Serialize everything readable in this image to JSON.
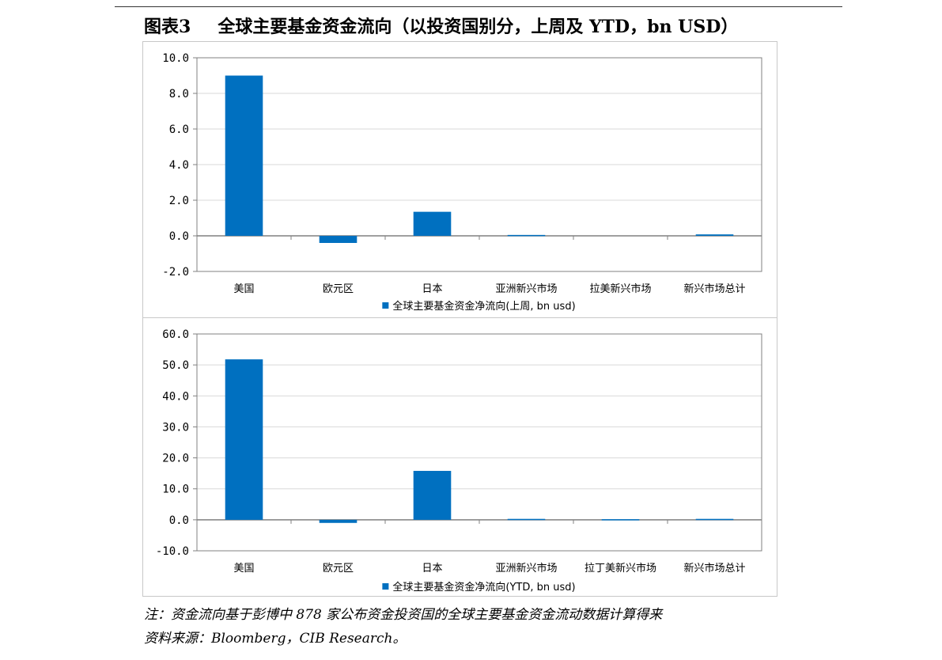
{
  "header": {
    "figure_number": "图表3",
    "figure_title": "全球主要基金资金流向（以投资国别分，上周及 YTD，bn USD）"
  },
  "colors": {
    "bar": "#0070C0",
    "grid": "#d9d9d9",
    "axis": "#808080"
  },
  "chart_data": [
    {
      "type": "bar",
      "categories": [
        "美国",
        "欧元区",
        "日本",
        "亚洲新兴市场",
        "拉美新兴市场",
        "新兴市场总计"
      ],
      "series": [
        {
          "name": "全球主要基金资金净流向(上周, bn usd)",
          "values": [
            9.0,
            -0.4,
            1.35,
            0.05,
            0.0,
            0.08
          ]
        }
      ],
      "ylim": [
        -2.0,
        10.0
      ],
      "yticks": [
        -2.0,
        0.0,
        2.0,
        4.0,
        6.0,
        8.0,
        10.0
      ],
      "ytick_labels": [
        "-2.0",
        "0.0",
        "2.0",
        "4.0",
        "6.0",
        "8.0",
        "10.0"
      ],
      "grid": true,
      "legend_position": "bottom"
    },
    {
      "type": "bar",
      "categories": [
        "美国",
        "欧元区",
        "日本",
        "亚洲新兴市场",
        "拉丁美新兴市场",
        "新兴市场总计"
      ],
      "series": [
        {
          "name": "全球主要基金资金净流向(YTD, bn usd)",
          "values": [
            51.8,
            -1.0,
            15.8,
            0.3,
            0.2,
            0.3
          ]
        }
      ],
      "ylim": [
        -10.0,
        60.0
      ],
      "yticks": [
        -10.0,
        0.0,
        10.0,
        20.0,
        30.0,
        40.0,
        50.0,
        60.0
      ],
      "ytick_labels": [
        "-10.0",
        "0.0",
        "10.0",
        "20.0",
        "30.0",
        "40.0",
        "50.0",
        "60.0"
      ],
      "grid": true,
      "legend_position": "bottom"
    }
  ],
  "footer": {
    "note": "注：资金流向基于彭博中 878 家公布资金投资国的全球主要基金资金流动数据计算得来",
    "source": "资料来源：Bloomberg，CIB Research。"
  }
}
